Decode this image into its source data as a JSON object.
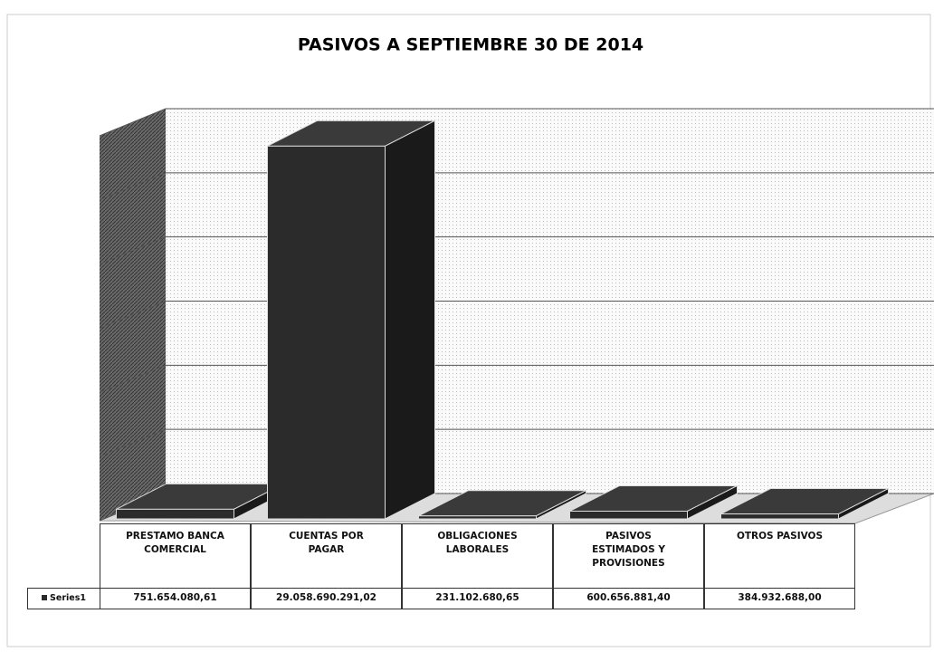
{
  "chart_data": {
    "type": "bar3d",
    "title": "PASIVOS A  SEPTIEMBRE 30 DE 2014",
    "categories": [
      "PRESTAMO BANCA COMERCIAL",
      "CUENTAS POR PAGAR",
      "OBLIGACIONES LABORALES",
      "PASIVOS ESTIMADOS Y PROVISIONES",
      "OTROS PASIVOS"
    ],
    "series": [
      {
        "name": "Series1",
        "color": "#2b2b2b",
        "values": [
          751654080.61,
          29058690291.02,
          231102680.65,
          600656881.4,
          384932688.0
        ],
        "value_labels": [
          "751.654.080,61",
          "29.058.690.291,02",
          "231.102.680,65",
          "600.656.881,40",
          "384.932.688,00"
        ]
      }
    ],
    "ylim": [
      0,
      30000000000
    ],
    "yticks": [
      0,
      5000000000,
      10000000000,
      15000000000,
      20000000000,
      25000000000,
      30000000000
    ],
    "grid": true,
    "legend": "table"
  }
}
